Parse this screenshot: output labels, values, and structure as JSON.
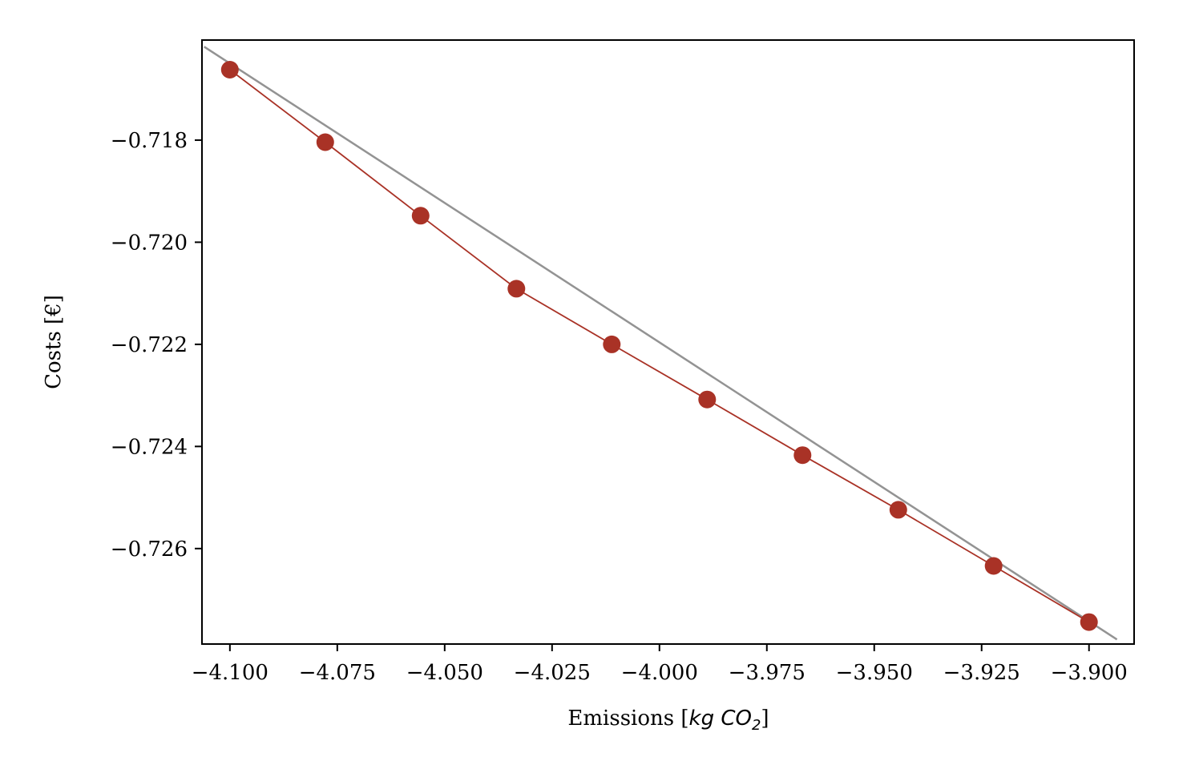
{
  "chart_data": {
    "type": "line",
    "title": "",
    "xlabel": "Emissions [",
    "xlabel_math": "kg CO",
    "xlabel_sub": "2",
    "xlabel_end": "]",
    "ylabel": "Costs [€]",
    "xlim": [
      -4.1065,
      -3.8895
    ],
    "ylim": [
      -0.72787,
      -0.71604
    ],
    "xticks": [
      -4.1,
      -4.075,
      -4.05,
      -4.025,
      -4.0,
      -3.975,
      -3.95,
      -3.925,
      -3.9
    ],
    "xtick_labels": [
      "−4.100",
      "−4.075",
      "−4.050",
      "−4.025",
      "−4.000",
      "−3.975",
      "−3.950",
      "−3.925",
      "−3.900"
    ],
    "yticks": [
      -0.718,
      -0.72,
      -0.722,
      -0.724,
      -0.726
    ],
    "ytick_labels": [
      "−0.718",
      "−0.720",
      "−0.722",
      "−0.724",
      "−0.726"
    ],
    "grid": false,
    "series": [
      {
        "style": "line-with-markers",
        "color": "#a93226",
        "x": [
          -4.1,
          -4.0778,
          -4.0556,
          -4.0333,
          -4.0111,
          -3.9889,
          -3.9667,
          -3.9444,
          -3.9222,
          -3.9
        ],
        "y": [
          -0.71662,
          -0.71804,
          -0.71948,
          -0.72091,
          -0.722,
          -0.72308,
          -0.72417,
          -0.72524,
          -0.72634,
          -0.72744
        ]
      },
      {
        "style": "line",
        "color": "#939393",
        "x": [
          -4.106,
          -3.8935
        ],
        "y": [
          -0.71617,
          -0.72778
        ]
      }
    ]
  }
}
